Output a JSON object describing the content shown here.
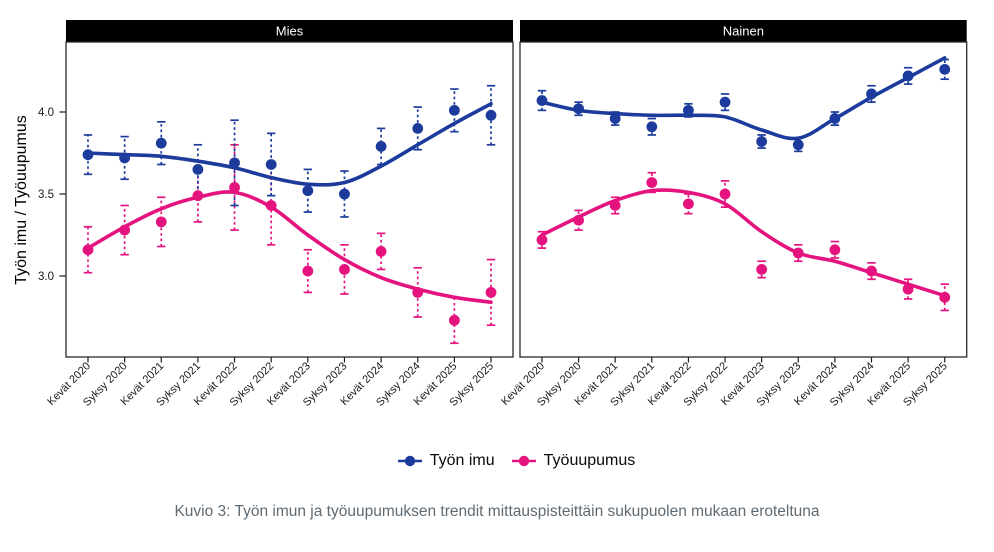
{
  "figure": {
    "y_axis_label": "Työn imu / Työuupumus",
    "caption": "Kuvio 3: Työn imun ja työuupumuksen trendit mittauspisteittäin sukupuolen mukaan eroteltuna",
    "colors": {
      "tyon_imu": "#1c3b9c",
      "tyouupumus": "#e4137e",
      "strip_bg": "#000000",
      "strip_text": "#ffffff",
      "axis_text": "#1a1a1a",
      "panel_border": "#2a2a2a",
      "caption_text": "#5f6a73"
    }
  },
  "chart_data": {
    "type": "line",
    "title": "",
    "xlabel": "",
    "ylabel": "Työn imu / Työuupumus",
    "ylim": [
      2.5,
      4.45
    ],
    "yticks": [
      3.0,
      3.5,
      4.0
    ],
    "grid": false,
    "legend_position": "bottom",
    "legend": [
      "Työn imu",
      "Työuupumus"
    ],
    "point_style": "filled-circle with dashed error bars and loess smooth line",
    "categories": [
      "Kevät 2020",
      "Syksy 2020",
      "Kevät 2021",
      "Syksy 2021",
      "Kevät 2022",
      "Syksy 2022",
      "Kevät 2023",
      "Syksy 2023",
      "Kevät 2024",
      "Syksy 2024",
      "Kevät 2025",
      "Syksy 2025"
    ],
    "facets": [
      {
        "label": "Mies",
        "series": [
          {
            "name": "Työn imu",
            "color": "#1c3b9c",
            "values": [
              3.74,
              3.72,
              3.81,
              3.65,
              3.69,
              3.68,
              3.52,
              3.5,
              3.79,
              3.9,
              4.01,
              3.98
            ],
            "errors": [
              0.12,
              0.13,
              0.13,
              0.15,
              0.26,
              0.19,
              0.13,
              0.14,
              0.11,
              0.13,
              0.13,
              0.18
            ],
            "trend": [
              3.75,
              3.74,
              3.73,
              3.7,
              3.66,
              3.6,
              3.56,
              3.57,
              3.67,
              3.8,
              3.93,
              4.05
            ]
          },
          {
            "name": "Työuupumus",
            "color": "#e4137e",
            "values": [
              3.16,
              3.28,
              3.33,
              3.49,
              3.54,
              3.43,
              3.03,
              3.04,
              3.15,
              2.9,
              2.73,
              2.9
            ],
            "errors": [
              0.14,
              0.15,
              0.15,
              0.16,
              0.26,
              0.24,
              0.13,
              0.15,
              0.11,
              0.15,
              0.14,
              0.2
            ],
            "trend": [
              3.17,
              3.3,
              3.41,
              3.48,
              3.51,
              3.42,
              3.25,
              3.1,
              2.99,
              2.92,
              2.87,
              2.84
            ]
          }
        ]
      },
      {
        "label": "Nainen",
        "series": [
          {
            "name": "Työn imu",
            "color": "#1c3b9c",
            "values": [
              4.07,
              4.02,
              3.96,
              3.91,
              4.01,
              4.06,
              3.82,
              3.8,
              3.96,
              4.11,
              4.22,
              4.26
            ],
            "errors": [
              0.06,
              0.04,
              0.04,
              0.05,
              0.04,
              0.05,
              0.04,
              0.04,
              0.04,
              0.05,
              0.05,
              0.06
            ],
            "trend": [
              4.06,
              4.01,
              3.99,
              3.98,
              3.98,
              3.97,
              3.89,
              3.84,
              3.96,
              4.09,
              4.21,
              4.33
            ]
          },
          {
            "name": "Työuupumus",
            "color": "#e4137e",
            "values": [
              3.22,
              3.34,
              3.43,
              3.57,
              3.44,
              3.5,
              3.04,
              3.14,
              3.16,
              3.03,
              2.92,
              2.87
            ],
            "errors": [
              0.05,
              0.06,
              0.05,
              0.06,
              0.06,
              0.08,
              0.05,
              0.05,
              0.05,
              0.05,
              0.06,
              0.08
            ],
            "trend": [
              3.25,
              3.36,
              3.46,
              3.52,
              3.51,
              3.44,
              3.27,
              3.14,
              3.09,
              3.02,
              2.95,
              2.88
            ]
          }
        ]
      }
    ]
  }
}
